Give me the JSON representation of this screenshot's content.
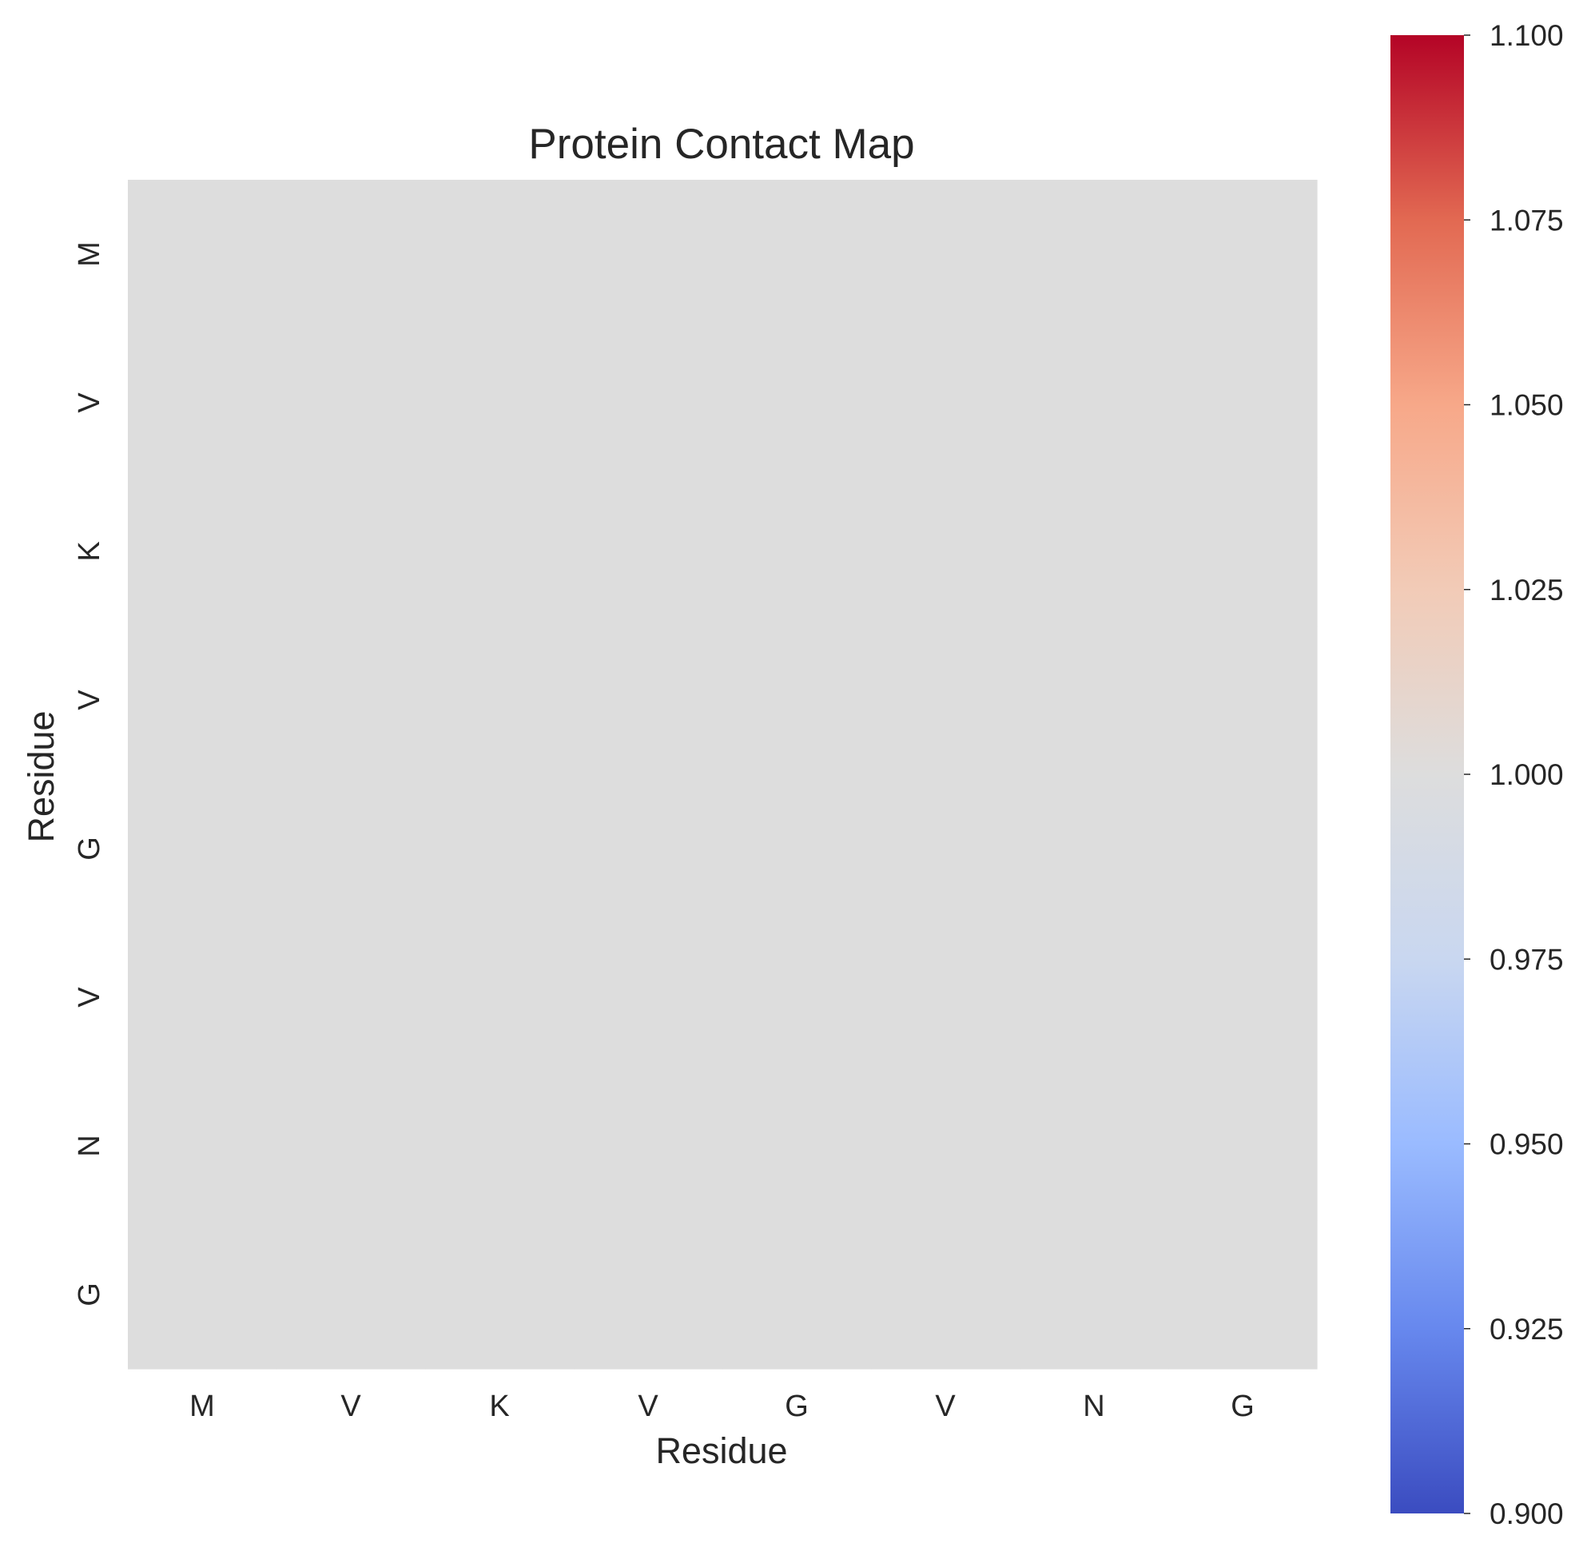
{
  "chart_data": {
    "type": "heatmap",
    "title": "Protein Contact Map",
    "xlabel": "Residue",
    "ylabel": "Residue",
    "x_categories": [
      "M",
      "V",
      "K",
      "V",
      "G",
      "V",
      "N",
      "G"
    ],
    "y_categories": [
      "M",
      "V",
      "K",
      "V",
      "G",
      "V",
      "N",
      "G"
    ],
    "values": [
      [
        1,
        1,
        1,
        1,
        1,
        1,
        1,
        1
      ],
      [
        1,
        1,
        1,
        1,
        1,
        1,
        1,
        1
      ],
      [
        1,
        1,
        1,
        1,
        1,
        1,
        1,
        1
      ],
      [
        1,
        1,
        1,
        1,
        1,
        1,
        1,
        1
      ],
      [
        1,
        1,
        1,
        1,
        1,
        1,
        1,
        1
      ],
      [
        1,
        1,
        1,
        1,
        1,
        1,
        1,
        1
      ],
      [
        1,
        1,
        1,
        1,
        1,
        1,
        1,
        1
      ],
      [
        1,
        1,
        1,
        1,
        1,
        1,
        1,
        1
      ]
    ],
    "colormap": "coolwarm",
    "colorbar": {
      "range": [
        0.9,
        1.1
      ],
      "ticks": [
        0.9,
        0.925,
        0.95,
        0.975,
        1.0,
        1.025,
        1.05,
        1.075,
        1.1
      ],
      "tick_labels": [
        "0.900",
        "0.925",
        "0.950",
        "0.975",
        "1.000",
        "1.025",
        "1.050",
        "1.075",
        "1.100"
      ],
      "placement": "right"
    },
    "grid": false,
    "colors": {
      "text": "#262626",
      "cmap_stops": [
        "#3b4cc0",
        "#6788ee",
        "#9abbff",
        "#c9d7f0",
        "#dddddd",
        "#f2cbb7",
        "#f7a889",
        "#e26952",
        "#b40426"
      ]
    }
  }
}
